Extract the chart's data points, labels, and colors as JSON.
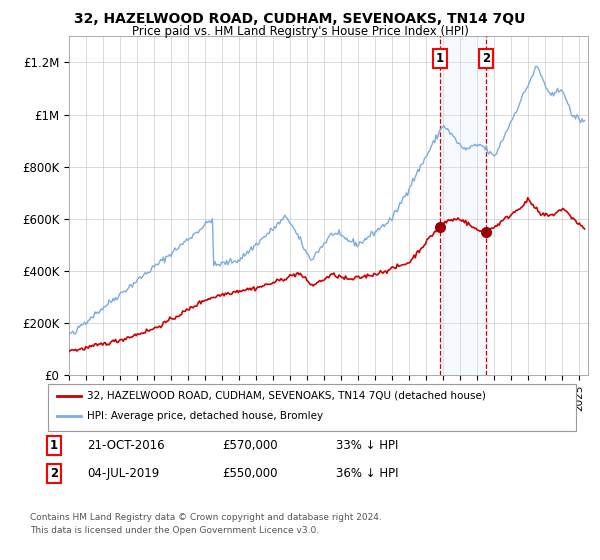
{
  "title": "32, HAZELWOOD ROAD, CUDHAM, SEVENOAKS, TN14 7QU",
  "subtitle": "Price paid vs. HM Land Registry's House Price Index (HPI)",
  "legend_line1": "32, HAZELWOOD ROAD, CUDHAM, SEVENOAKS, TN14 7QU (detached house)",
  "legend_line2": "HPI: Average price, detached house, Bromley",
  "ann1_date": "21-OCT-2016",
  "ann1_price": "£570,000",
  "ann1_note": "33% ↓ HPI",
  "ann2_date": "04-JUL-2019",
  "ann2_price": "£550,000",
  "ann2_note": "36% ↓ HPI",
  "footnote1": "Contains HM Land Registry data © Crown copyright and database right 2024.",
  "footnote2": "This data is licensed under the Open Government Licence v3.0.",
  "hpi_color": "#7aade0",
  "price_color": "#cc0000",
  "marker_color": "#990000",
  "vline_color": "#cc0000",
  "shade_color": "#ddeeff",
  "background_color": "#ffffff",
  "grid_color": "#cccccc",
  "ylim": [
    0,
    1300000
  ],
  "xlim_start": 1995.0,
  "xlim_end": 2025.5,
  "marker1_x": 2016.8,
  "marker1_y": 570000,
  "marker2_x": 2019.5,
  "marker2_y": 550000,
  "shade_x1": 2016.8,
  "shade_x2": 2019.5
}
